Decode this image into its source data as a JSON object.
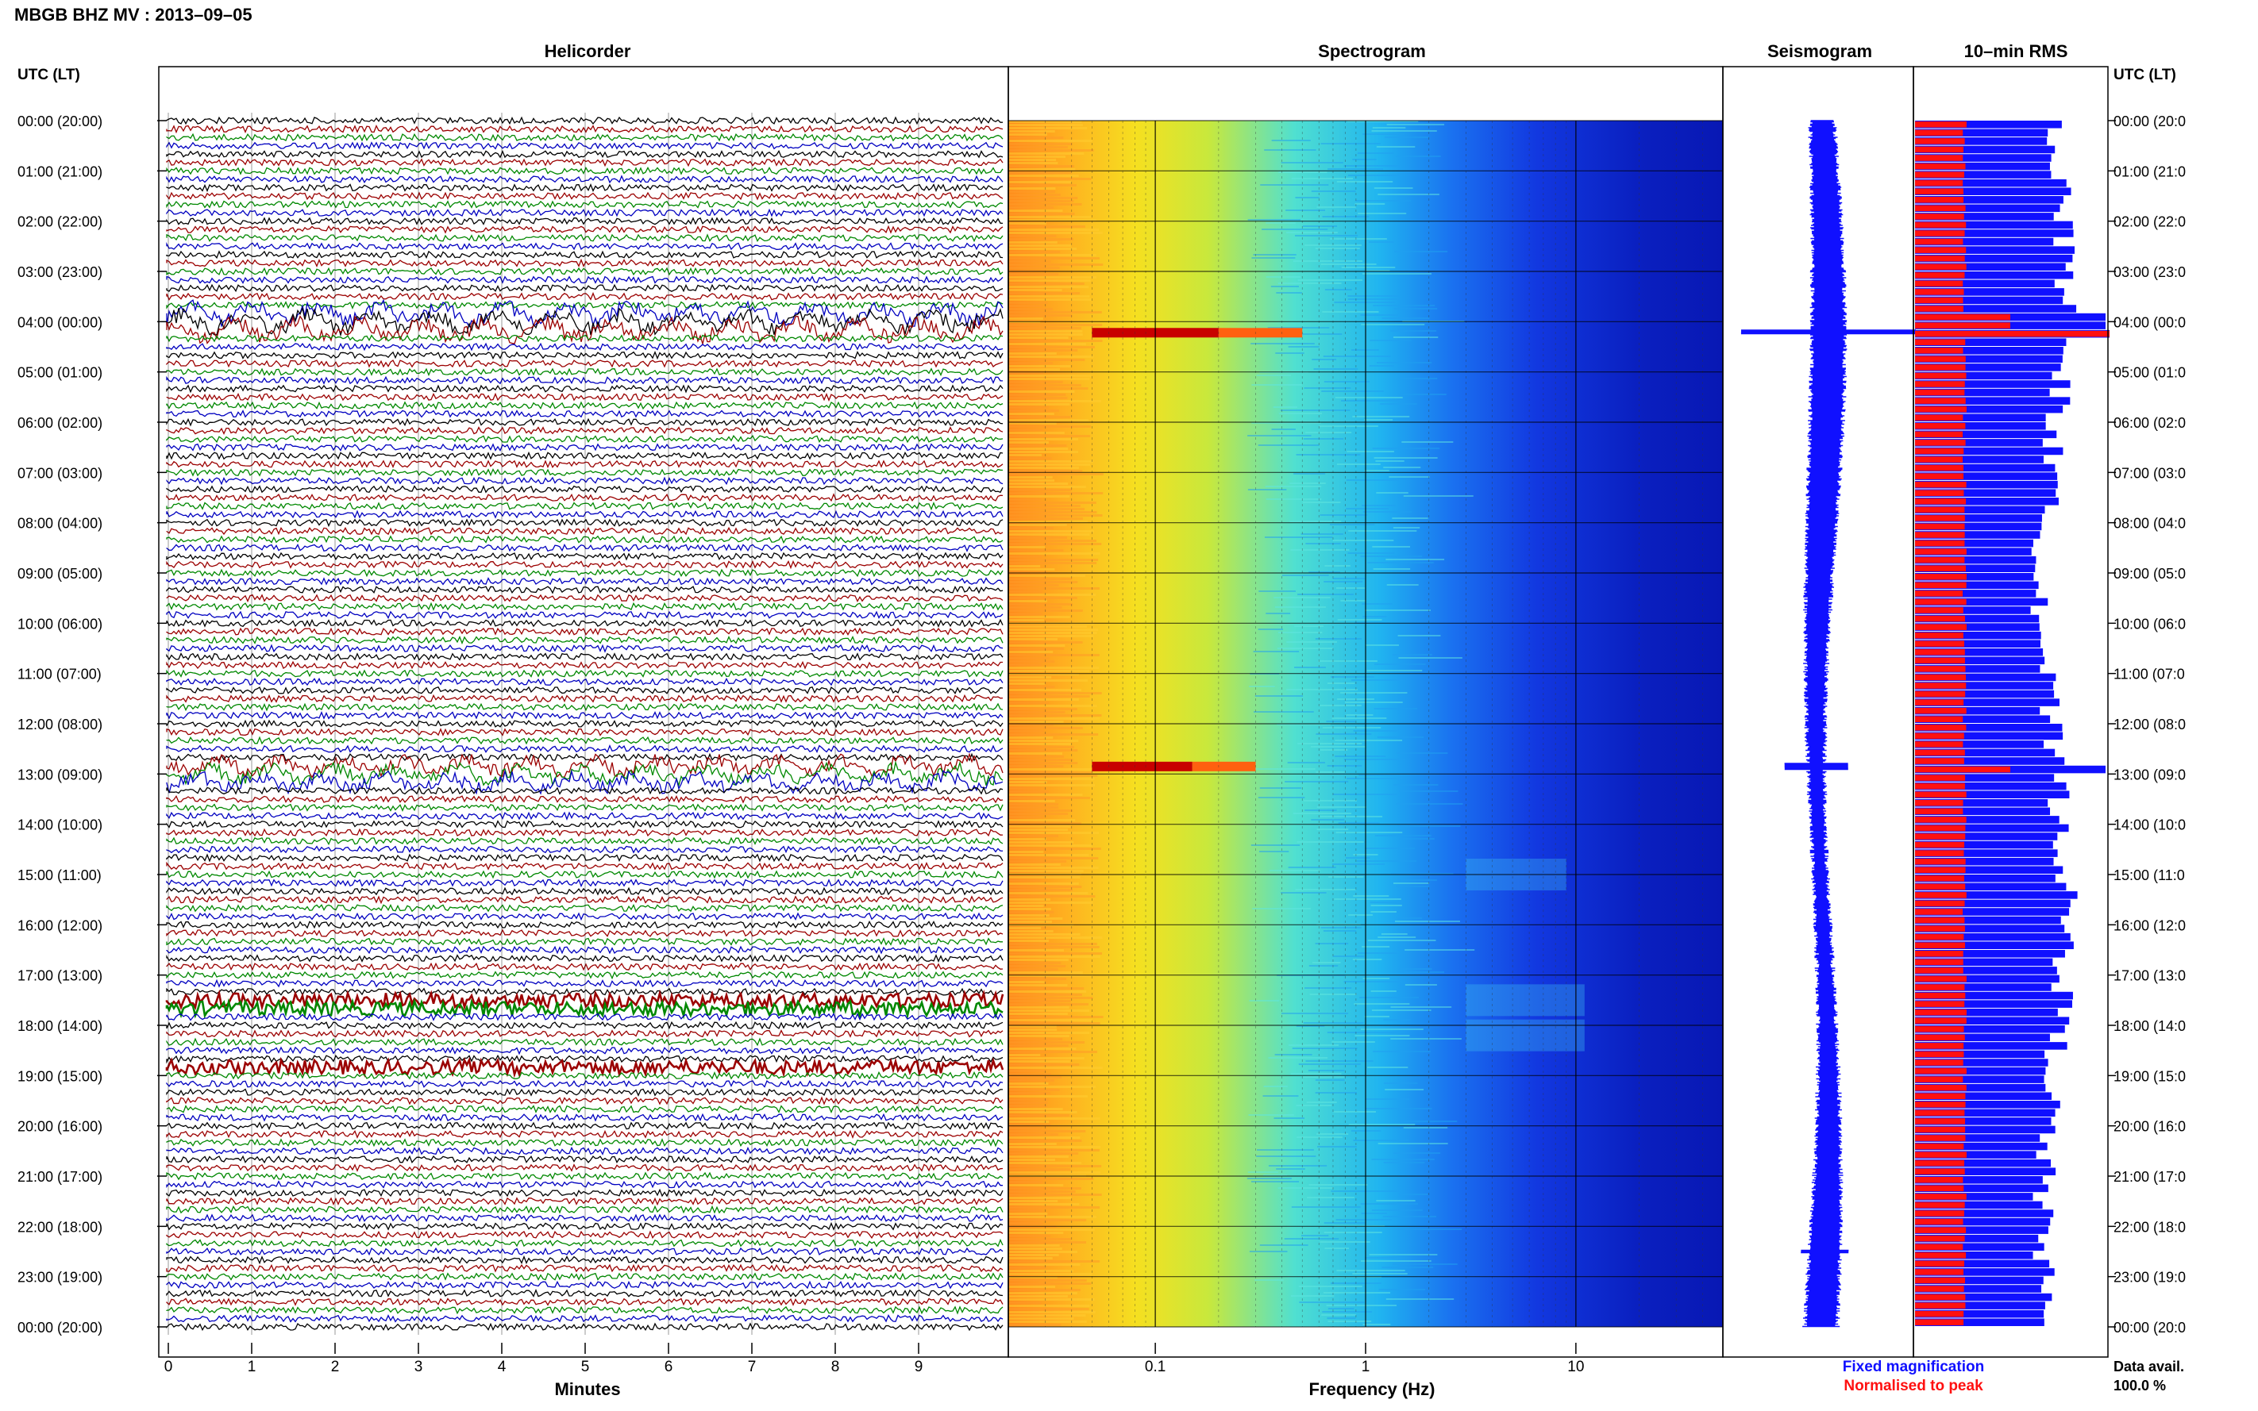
{
  "page": {
    "title": "MBGB BHZ MV : 2013–09–05"
  },
  "axes": {
    "time_header_left": "UTC (LT)",
    "time_header_right": "UTC (LT)",
    "time_labels_left": [
      "00:00 (20:00)",
      "01:00 (21:00)",
      "02:00 (22:00)",
      "03:00 (23:00)",
      "04:00 (00:00)",
      "05:00 (01:00)",
      "06:00 (02:00)",
      "07:00 (03:00)",
      "08:00 (04:00)",
      "09:00 (05:00)",
      "10:00 (06:00)",
      "11:00 (07:00)",
      "12:00 (08:00)",
      "13:00 (09:00)",
      "14:00 (10:00)",
      "15:00 (11:00)",
      "16:00 (12:00)",
      "17:00 (13:00)",
      "18:00 (14:00)",
      "19:00 (15:00)",
      "20:00 (16:00)",
      "21:00 (17:00)",
      "22:00 (18:00)",
      "23:00 (19:00)",
      "00:00 (20:00)"
    ],
    "time_labels_right": [
      "00:00 (20:0",
      "01:00 (21:0",
      "02:00 (22:0",
      "03:00 (23:0",
      "04:00 (00:0",
      "05:00 (01:0",
      "06:00 (02:0",
      "07:00 (03:0",
      "08:00 (04:0",
      "09:00 (05:0",
      "10:00 (06:0",
      "11:00 (07:0",
      "12:00 (08:0",
      "13:00 (09:0",
      "14:00 (10:0",
      "15:00 (11:0",
      "16:00 (12:0",
      "17:00 (13:0",
      "18:00 (14:0",
      "19:00 (15:0",
      "20:00 (16:0",
      "21:00 (17:0",
      "22:00 (18:0",
      "23:00 (19:0",
      "00:00 (20:0"
    ]
  },
  "panels": {
    "helicorder": {
      "title": "Helicorder",
      "xlabel": "Minutes",
      "ticks": [
        "0",
        "1",
        "2",
        "3",
        "4",
        "5",
        "6",
        "7",
        "8",
        "9"
      ]
    },
    "spectrogram": {
      "title": "Spectrogram",
      "xlabel": "Frequency (Hz)",
      "ticks": [
        "0.1",
        "1",
        "10"
      ]
    },
    "seismogram": {
      "title": "Seismogram"
    },
    "rms": {
      "title": "10–min RMS"
    }
  },
  "legend": {
    "fixed": "Fixed magnification",
    "normalised": "Normalised to peak",
    "fixed_color": "#1010ff",
    "normalised_color": "#ff1010"
  },
  "data_availability": {
    "label": "Data avail.",
    "value": "100.0 %"
  },
  "colors": {
    "trace_cycle": [
      "#000000",
      "#9b0000",
      "#008800",
      "#0000c0"
    ],
    "seismogram": "#1010ff",
    "rms_fixed": "#1010ff",
    "rms_normalised": "#ff1010",
    "spectro_low": "#0a1ec8",
    "spectro_high": "#ff8000"
  },
  "chart_data": [
    {
      "type": "line",
      "name": "helicorder",
      "x_unit": "minutes",
      "xlim": [
        0,
        10
      ],
      "rows_per_hour": 6,
      "hours": 24,
      "notable_events": [
        {
          "time_utc": "04:00",
          "description": "large oscillation band across row"
        },
        {
          "time_utc": "13:00",
          "description": "oscillation band across row"
        },
        {
          "time_utc": "17:40",
          "description": "dark noise band"
        },
        {
          "time_utc": "18:50",
          "description": "dark noise band"
        }
      ]
    },
    {
      "type": "heatmap",
      "name": "spectrogram",
      "x_scale": "log",
      "xlim": [
        0.02,
        50
      ],
      "y": "time UTC 00:00 to 24:00",
      "hot_spots": [
        {
          "time_utc": "04:15",
          "freq_hz_min": 0.05,
          "freq_hz_max": 0.2
        },
        {
          "time_utc": "12:50",
          "freq_hz_min": 0.05,
          "freq_hz_max": 0.15
        }
      ]
    },
    {
      "type": "line",
      "name": "seismogram",
      "spikes_utc": [
        "04:12",
        "12:50",
        "22:30"
      ]
    },
    {
      "type": "bar",
      "name": "10-min RMS",
      "normalised_peak_utc": "04:12",
      "fixed_magnification_peaks_utc": [
        "04:12",
        "12:50"
      ]
    }
  ]
}
